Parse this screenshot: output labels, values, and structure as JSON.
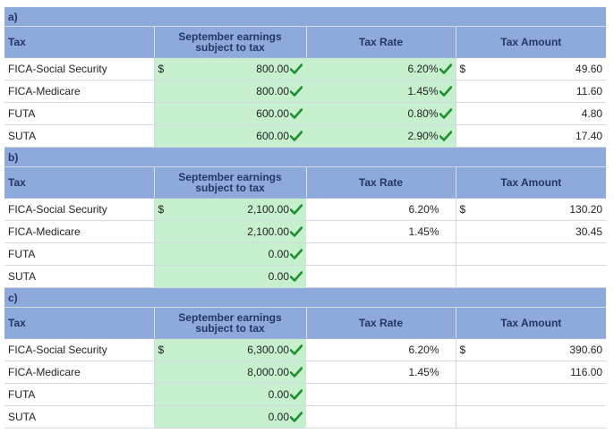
{
  "headers": {
    "tax": "Tax",
    "earnings_line1": "September earnings",
    "earnings_line2": "subject to tax",
    "rate": "Tax Rate",
    "amount": "Tax Amount"
  },
  "currency": "$",
  "sections": [
    {
      "label": "a)",
      "rows": [
        {
          "tax": "FICA-Social Security",
          "earn_cur": "$",
          "earnings": "800.00",
          "earn_check": true,
          "rate": "6.20%",
          "rate_check": true,
          "rate_green": true,
          "amt_cur": "$",
          "amount": "49.60"
        },
        {
          "tax": "FICA-Medicare",
          "earn_cur": "",
          "earnings": "800.00",
          "earn_check": true,
          "rate": "1.45%",
          "rate_check": true,
          "rate_green": true,
          "amt_cur": "",
          "amount": "11.60"
        },
        {
          "tax": "FUTA",
          "earn_cur": "",
          "earnings": "600.00",
          "earn_check": true,
          "rate": "0.80%",
          "rate_check": true,
          "rate_green": true,
          "amt_cur": "",
          "amount": "4.80"
        },
        {
          "tax": "SUTA",
          "earn_cur": "",
          "earnings": "600.00",
          "earn_check": true,
          "rate": "2.90%",
          "rate_check": true,
          "rate_green": true,
          "amt_cur": "",
          "amount": "17.40"
        }
      ]
    },
    {
      "label": "b)",
      "rows": [
        {
          "tax": "FICA-Social Security",
          "earn_cur": "$",
          "earnings": "2,100.00",
          "earn_check": true,
          "rate": "6.20%",
          "rate_check": false,
          "rate_green": false,
          "amt_cur": "$",
          "amount": "130.20"
        },
        {
          "tax": "FICA-Medicare",
          "earn_cur": "",
          "earnings": "2,100.00",
          "earn_check": true,
          "rate": "1.45%",
          "rate_check": false,
          "rate_green": false,
          "amt_cur": "",
          "amount": "30.45"
        },
        {
          "tax": "FUTA",
          "earn_cur": "",
          "earnings": "0.00",
          "earn_check": true,
          "rate": "",
          "rate_check": false,
          "rate_green": false,
          "amt_cur": "",
          "amount": ""
        },
        {
          "tax": "SUTA",
          "earn_cur": "",
          "earnings": "0.00",
          "earn_check": true,
          "rate": "",
          "rate_check": false,
          "rate_green": false,
          "amt_cur": "",
          "amount": ""
        }
      ]
    },
    {
      "label": "c)",
      "rows": [
        {
          "tax": "FICA-Social Security",
          "earn_cur": "$",
          "earnings": "6,300.00",
          "earn_check": true,
          "rate": "6.20%",
          "rate_check": false,
          "rate_green": false,
          "amt_cur": "$",
          "amount": "390.60"
        },
        {
          "tax": "FICA-Medicare",
          "earn_cur": "",
          "earnings": "8,000.00",
          "earn_check": true,
          "rate": "1.45%",
          "rate_check": false,
          "rate_green": false,
          "amt_cur": "",
          "amount": "116.00"
        },
        {
          "tax": "FUTA",
          "earn_cur": "",
          "earnings": "0.00",
          "earn_check": true,
          "rate": "",
          "rate_check": false,
          "rate_green": false,
          "amt_cur": "",
          "amount": ""
        },
        {
          "tax": "SUTA",
          "earn_cur": "",
          "earnings": "0.00",
          "earn_check": true,
          "rate": "",
          "rate_check": false,
          "rate_green": false,
          "amt_cur": "",
          "amount": ""
        }
      ]
    }
  ],
  "colors": {
    "header_bg": "#8ea9db",
    "input_green": "#c6efce",
    "check_green": "#1e8f2e"
  },
  "icons": {
    "check": "checkmark-icon"
  }
}
